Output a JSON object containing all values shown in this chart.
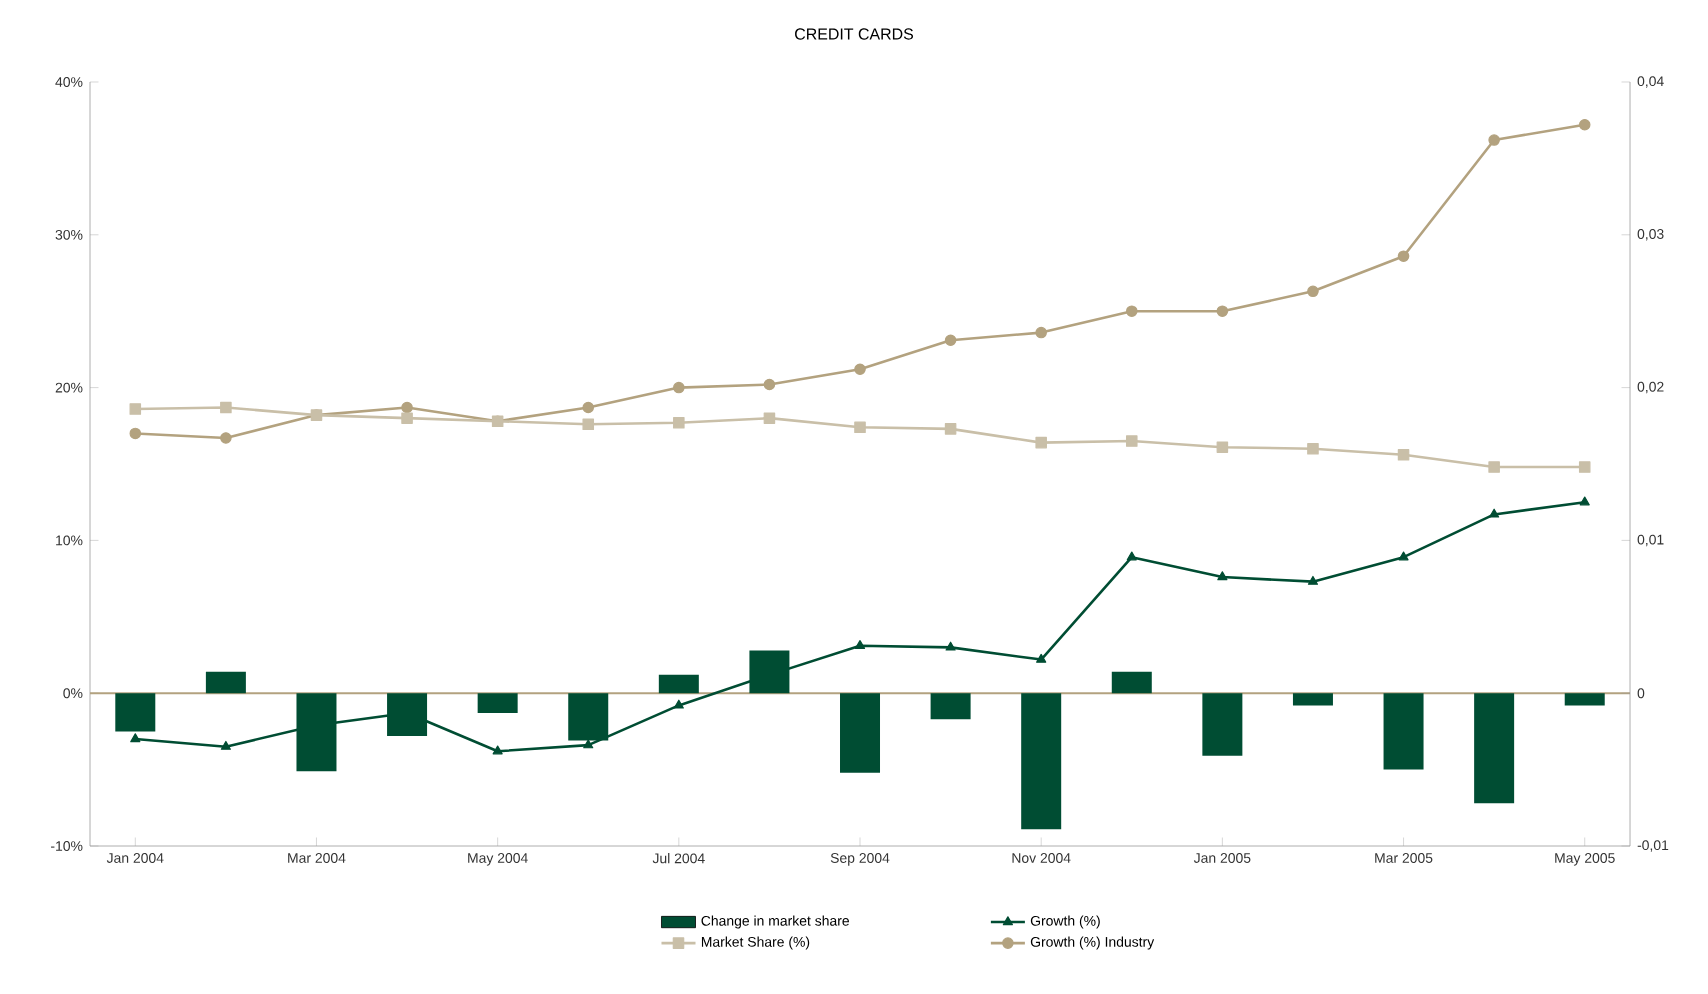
{
  "chart_data": {
    "type": "line",
    "title": "CREDIT CARDS",
    "categories": [
      "Jan 2004",
      null,
      "Mar 2004",
      null,
      "May 2004",
      null,
      "Jul 2004",
      null,
      "Sep 2004",
      null,
      "Nov 2004",
      null,
      "Jan 2005",
      null,
      "Mar 2005",
      null,
      "May 2005"
    ],
    "series": [
      {
        "name": "Change in market share",
        "type": "bar",
        "axis": "y2",
        "color": "#004d33",
        "values": [
          -0.0025,
          0.0014,
          -0.0051,
          -0.0028,
          -0.0013,
          -0.0031,
          0.0012,
          0.0028,
          -0.0052,
          -0.0017,
          -0.0089,
          0.0014,
          -0.0041,
          -0.0008,
          -0.005,
          -0.0072,
          -0.0008
        ]
      },
      {
        "name": "Growth (%)",
        "color": "#004d33",
        "marker": "triangle",
        "values": [
          -3.0,
          -3.5,
          -2.1,
          -1.3,
          -3.8,
          -3.4,
          -0.8,
          1.2,
          3.1,
          3.0,
          2.2,
          8.9,
          7.6,
          7.3,
          8.9,
          11.7,
          12.5
        ]
      },
      {
        "name": "Growth (%) Industry",
        "color": "#b3a27f",
        "marker": "circle",
        "values": [
          17.0,
          16.7,
          18.2,
          18.7,
          17.8,
          18.7,
          20.0,
          20.2,
          21.2,
          23.1,
          23.6,
          25.0,
          25.0,
          26.3,
          28.6,
          36.2,
          37.2
        ]
      },
      {
        "name": "Market Share (%)",
        "axis": "y2",
        "color": "#c9bfa8",
        "marker": "square",
        "values": [
          0.0186,
          0.0187,
          0.0182,
          0.018,
          0.0178,
          0.0176,
          0.0177,
          0.018,
          0.0174,
          0.0173,
          0.0164,
          0.0165,
          0.0161,
          0.016,
          0.0156,
          0.0148,
          0.0148
        ]
      }
    ],
    "ylim": [
      -10,
      40
    ],
    "yticks": [
      {
        "value": -10,
        "label": "-10%"
      },
      {
        "value": 0,
        "label": "0%"
      },
      {
        "value": 10,
        "label": "10%"
      },
      {
        "value": 20,
        "label": "20%"
      },
      {
        "value": 30,
        "label": "30%"
      },
      {
        "value": 40,
        "label": "40%"
      }
    ],
    "y2lim": [
      -0.01,
      0.04
    ],
    "y2ticks": [
      {
        "value": -0.01,
        "label": "-0,01"
      },
      {
        "value": 0,
        "label": "0"
      },
      {
        "value": 0.01,
        "label": "0,01"
      },
      {
        "value": 0.02,
        "label": "0,02"
      },
      {
        "value": 0.03,
        "label": "0,03"
      },
      {
        "value": 0.04,
        "label": "0,04"
      }
    ],
    "ref_lines": [
      {
        "axis": "y",
        "value": 0,
        "color": "#b3a27f"
      }
    ],
    "legend": "bottom"
  }
}
